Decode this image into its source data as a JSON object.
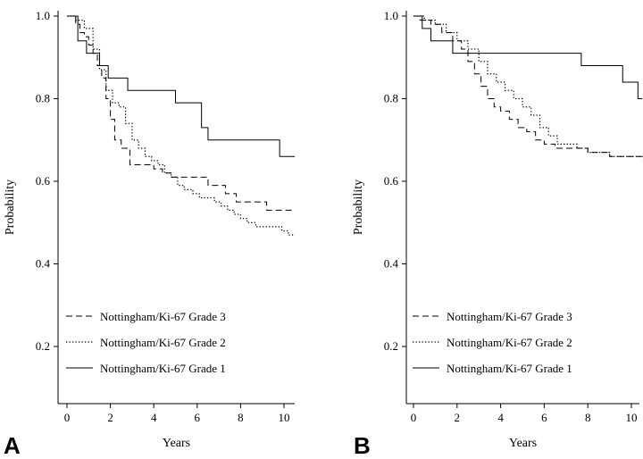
{
  "chart_data": [
    {
      "panel_label": "A",
      "type": "line",
      "step": true,
      "xlabel": "Years",
      "ylabel": "Probability",
      "xlim": [
        -0.5,
        10.5
      ],
      "ylim": [
        0.05,
        1.02
      ],
      "xticks": [
        0,
        2,
        4,
        6,
        8,
        10
      ],
      "yticks": [
        0.2,
        0.4,
        0.6,
        0.8,
        1.0
      ],
      "ytick_labels": [
        "0.2",
        "0.4",
        "0.6",
        "0.8",
        "1.0"
      ],
      "grid": false,
      "legend_position": "lower-left",
      "series": [
        {
          "name": "Nottingham/Ki-67 Grade 3",
          "style": "dashed",
          "x": [
            0,
            0.4,
            0.6,
            0.8,
            1.0,
            1.2,
            1.4,
            1.6,
            1.8,
            2.0,
            2.2,
            2.5,
            2.9,
            3.2,
            3.6,
            4.0,
            4.4,
            4.8,
            5.0,
            5.4,
            6.0,
            6.5,
            7.3,
            7.8,
            8.2,
            9.2,
            10.5
          ],
          "y": [
            1.0,
            0.98,
            0.96,
            0.95,
            0.93,
            0.91,
            0.88,
            0.85,
            0.8,
            0.75,
            0.7,
            0.68,
            0.64,
            0.64,
            0.64,
            0.63,
            0.62,
            0.61,
            0.61,
            0.61,
            0.61,
            0.59,
            0.57,
            0.55,
            0.55,
            0.53,
            0.53
          ]
        },
        {
          "name": "Nottingham/Ki-67 Grade 2",
          "style": "dotted",
          "x": [
            0,
            0.4,
            0.8,
            1.2,
            1.5,
            1.8,
            2.1,
            2.4,
            2.7,
            3.0,
            3.3,
            3.6,
            3.9,
            4.2,
            4.5,
            4.8,
            5.1,
            5.4,
            5.8,
            6.1,
            6.4,
            6.8,
            7.1,
            7.4,
            7.7,
            8.0,
            8.3,
            8.7,
            9.1,
            9.5,
            9.9,
            10.2,
            10.5
          ],
          "y": [
            1.0,
            0.99,
            0.97,
            0.92,
            0.87,
            0.82,
            0.79,
            0.78,
            0.74,
            0.7,
            0.68,
            0.66,
            0.65,
            0.64,
            0.62,
            0.61,
            0.59,
            0.58,
            0.57,
            0.56,
            0.56,
            0.55,
            0.54,
            0.53,
            0.52,
            0.51,
            0.5,
            0.49,
            0.49,
            0.49,
            0.48,
            0.47,
            0.47
          ]
        },
        {
          "name": "Nottingham/Ki-67 Grade 1",
          "style": "solid",
          "x": [
            0,
            0.5,
            0.9,
            1.5,
            1.9,
            2.8,
            4.0,
            5.0,
            6.0,
            6.2,
            6.5,
            9.8,
            10.5
          ],
          "y": [
            1.0,
            0.94,
            0.91,
            0.88,
            0.85,
            0.82,
            0.82,
            0.79,
            0.79,
            0.73,
            0.7,
            0.66,
            0.66
          ]
        }
      ]
    },
    {
      "panel_label": "B",
      "type": "line",
      "step": true,
      "xlabel": "Years",
      "ylabel": "Probability",
      "xlim": [
        -0.5,
        10.5
      ],
      "ylim": [
        0.05,
        1.02
      ],
      "xticks": [
        0,
        2,
        4,
        6,
        8,
        10
      ],
      "yticks": [
        0.2,
        0.4,
        0.6,
        0.8,
        1.0
      ],
      "ytick_labels": [
        "0.2",
        "0.4",
        "0.6",
        "0.8",
        "1.0"
      ],
      "grid": false,
      "legend_position": "lower-left",
      "series": [
        {
          "name": "Nottingham/Ki-67 Grade 3",
          "style": "dashed",
          "x": [
            0,
            0.3,
            0.8,
            1.3,
            1.8,
            2.2,
            2.5,
            2.8,
            3.1,
            3.4,
            3.7,
            4.0,
            4.4,
            4.8,
            5.2,
            5.6,
            6.0,
            6.5,
            7.0,
            7.5,
            8.0,
            9.0,
            10.5
          ],
          "y": [
            1.0,
            0.99,
            0.98,
            0.96,
            0.94,
            0.92,
            0.89,
            0.86,
            0.83,
            0.8,
            0.78,
            0.77,
            0.75,
            0.73,
            0.72,
            0.7,
            0.69,
            0.68,
            0.68,
            0.68,
            0.67,
            0.66,
            0.65
          ]
        },
        {
          "name": "Nottingham/Ki-67 Grade 2",
          "style": "dotted",
          "x": [
            0,
            0.5,
            1.0,
            1.5,
            2.0,
            2.5,
            3.0,
            3.4,
            3.8,
            4.2,
            4.6,
            5.0,
            5.4,
            5.8,
            6.2,
            6.6,
            7.0,
            7.5,
            8.0,
            9.0,
            10.5
          ],
          "y": [
            1.0,
            0.99,
            0.98,
            0.96,
            0.94,
            0.92,
            0.89,
            0.86,
            0.84,
            0.82,
            0.8,
            0.78,
            0.76,
            0.73,
            0.71,
            0.69,
            0.69,
            0.68,
            0.67,
            0.66,
            0.66
          ]
        },
        {
          "name": "Nottingham/Ki-67 Grade 1",
          "style": "solid",
          "x": [
            0,
            0.4,
            0.8,
            1.8,
            2.4,
            7.7,
            9.6,
            10.3,
            10.5
          ],
          "y": [
            1.0,
            0.97,
            0.94,
            0.91,
            0.91,
            0.88,
            0.84,
            0.8,
            0.8
          ]
        }
      ]
    }
  ]
}
